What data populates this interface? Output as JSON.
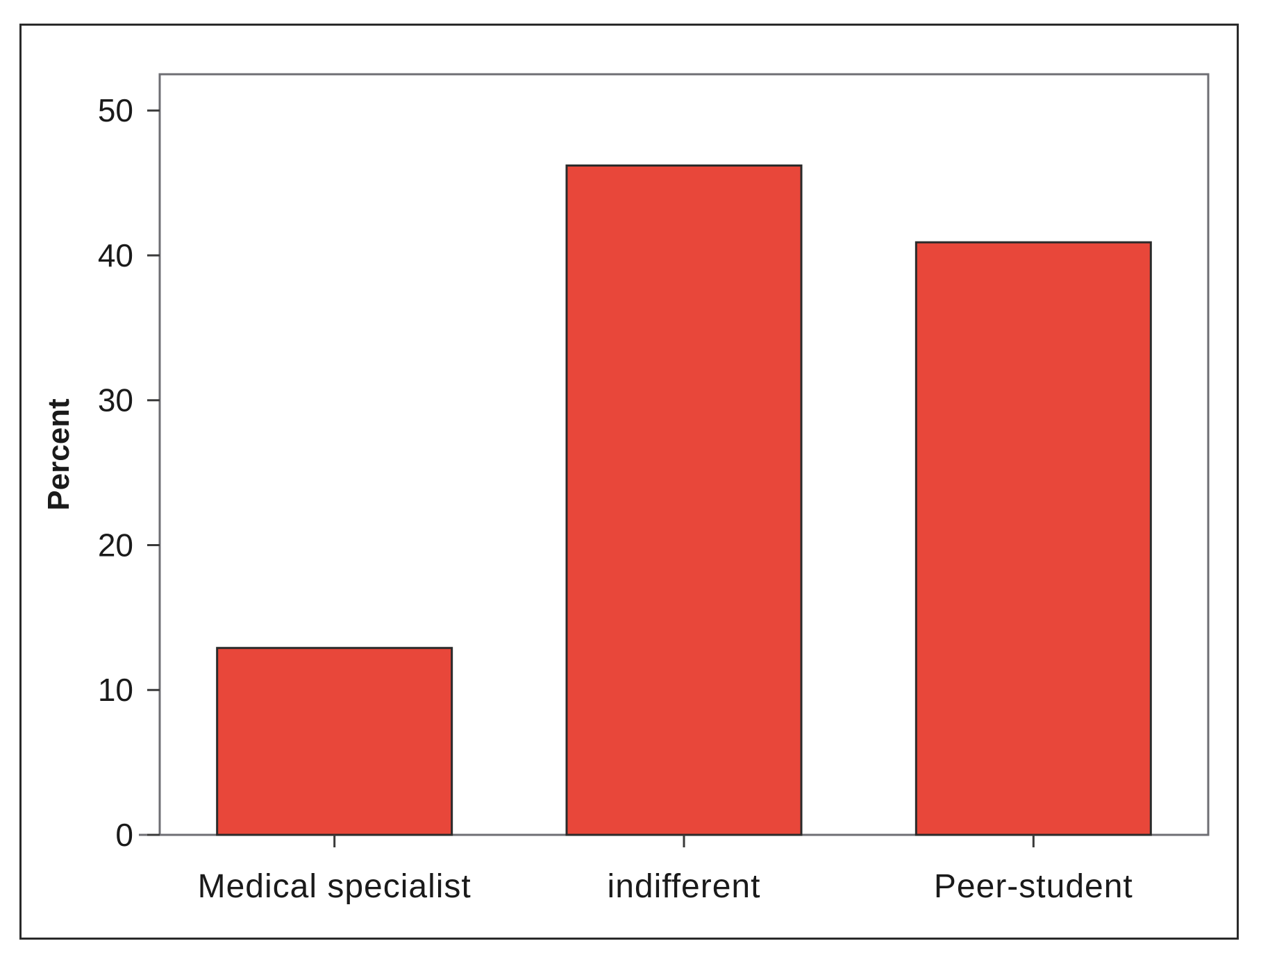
{
  "chart_data": {
    "type": "bar",
    "categories": [
      "Medical specialist",
      "indifferent",
      "Peer-student"
    ],
    "values": [
      12.9,
      46.2,
      40.9
    ],
    "title": "",
    "xlabel": "",
    "ylabel": "Percent",
    "ylim": [
      0,
      52.5
    ],
    "yticks": [
      0,
      10,
      20,
      30,
      40,
      50
    ],
    "grid": false,
    "bar_color": "#e8473a",
    "bar_edge_color": "#2b2b2b",
    "axis_color": "#6e6e73"
  }
}
